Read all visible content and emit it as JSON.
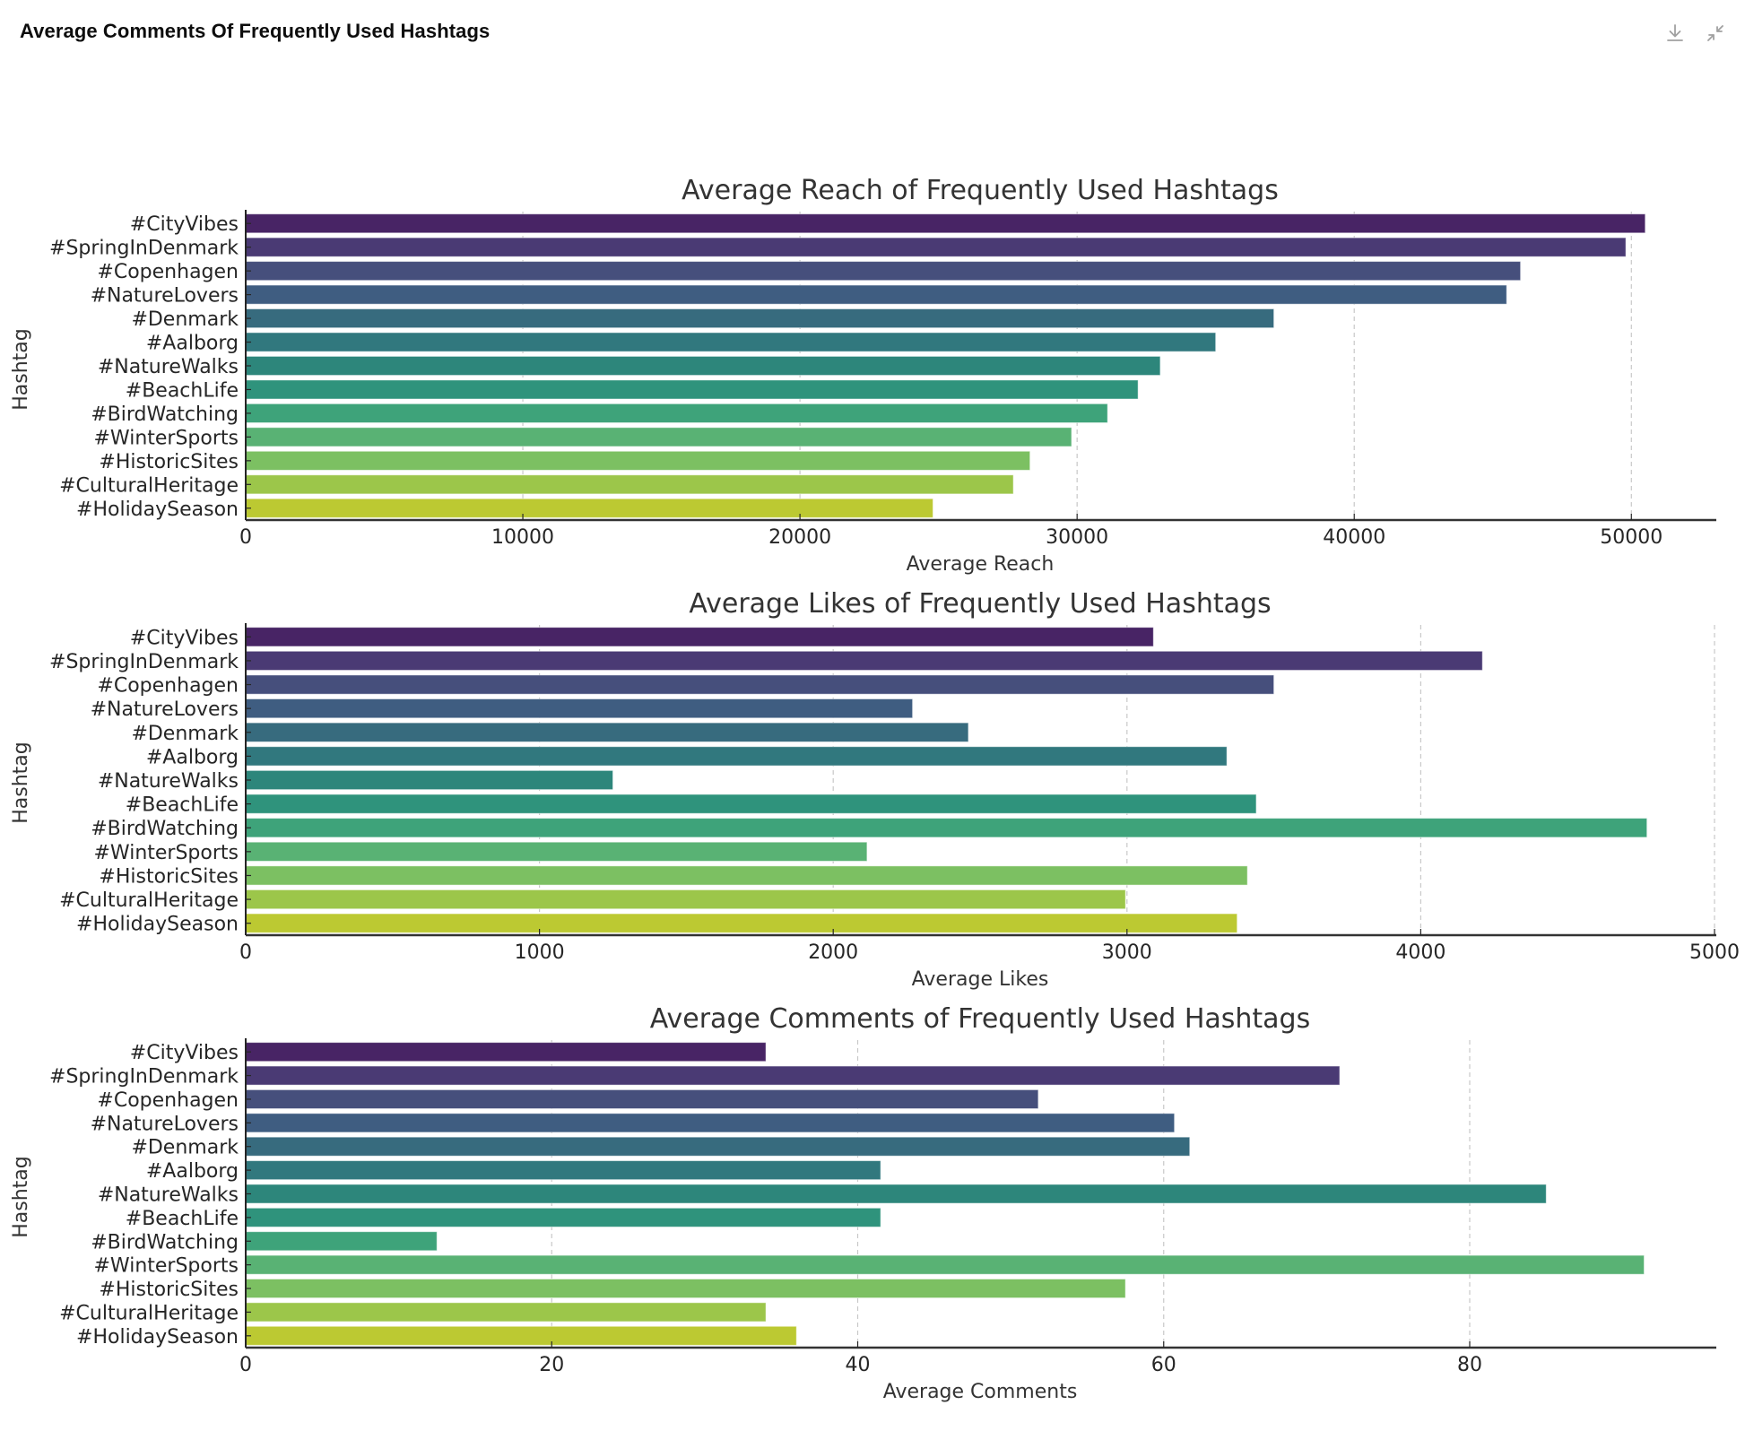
{
  "header": {
    "title": "Average Comments Of Frequently Used Hashtags",
    "download_icon": "download-icon",
    "collapse_icon": "collapse-icon"
  },
  "chart_data": [
    {
      "type": "bar",
      "orientation": "horizontal",
      "title": "Average Reach of Frequently Used Hashtags",
      "xlabel": "Average Reach",
      "ylabel": "Hashtag",
      "xlim": [
        0,
        53000
      ],
      "xticks": [
        0,
        10000,
        20000,
        30000,
        40000,
        50000
      ],
      "xtick_labels": [
        "0",
        "10000",
        "20000",
        "30000",
        "40000",
        "50000"
      ],
      "grid": "x, dashed",
      "categories": [
        "#CityVibes",
        "#SpringInDenmark",
        "#Copenhagen",
        "#NatureLovers",
        "#Denmark",
        "#Aalborg",
        "#NatureWalks",
        "#BeachLife",
        "#BirdWatching",
        "#WinterSports",
        "#HistoricSites",
        "#CulturalHeritage",
        "#HolidaySeason"
      ],
      "values": [
        50500,
        49800,
        46000,
        45500,
        37100,
        35000,
        33000,
        32200,
        31100,
        29800,
        28300,
        27700,
        24800
      ]
    },
    {
      "type": "bar",
      "orientation": "horizontal",
      "title": "Average Likes of Frequently Used Hashtags",
      "xlabel": "Average Likes",
      "ylabel": "Hashtag",
      "xlim": [
        0,
        5000
      ],
      "xticks": [
        0,
        1000,
        2000,
        3000,
        4000,
        5000
      ],
      "xtick_labels": [
        "0",
        "1000",
        "2000",
        "3000",
        "4000",
        "5000"
      ],
      "grid": "x, dashed",
      "categories": [
        "#CityVibes",
        "#SpringInDenmark",
        "#Copenhagen",
        "#NatureLovers",
        "#Denmark",
        "#Aalborg",
        "#NatureWalks",
        "#BeachLife",
        "#BirdWatching",
        "#WinterSports",
        "#HistoricSites",
        "#CulturalHeritage",
        "#HolidaySeason"
      ],
      "values": [
        3090,
        4210,
        3500,
        2270,
        2460,
        3340,
        1250,
        3440,
        4770,
        2115,
        3410,
        2995,
        3375
      ]
    },
    {
      "type": "bar",
      "orientation": "horizontal",
      "title": "Average Comments of Frequently Used Hashtags",
      "xlabel": "Average Comments",
      "ylabel": "Hashtag",
      "xlim": [
        0,
        96
      ],
      "xticks": [
        0,
        20,
        40,
        60,
        80
      ],
      "xtick_labels": [
        "0",
        "20",
        "40",
        "60",
        "80"
      ],
      "grid": "x, dashed",
      "categories": [
        "#CityVibes",
        "#SpringInDenmark",
        "#Copenhagen",
        "#NatureLovers",
        "#Denmark",
        "#Aalborg",
        "#NatureWalks",
        "#BeachLife",
        "#BirdWatching",
        "#WinterSports",
        "#HistoricSites",
        "#CulturalHeritage",
        "#HolidaySeason"
      ],
      "values": [
        34.0,
        71.5,
        51.8,
        60.7,
        61.7,
        41.5,
        85.0,
        41.5,
        12.5,
        91.4,
        57.5,
        34.0,
        36.0
      ]
    }
  ],
  "palette": [
    "#482465",
    "#4a3a74",
    "#464f7c",
    "#3f5d81",
    "#376b7e",
    "#31787e",
    "#2d867b",
    "#2f937c",
    "#3ea37a",
    "#59b274",
    "#7cc062",
    "#9cc64a",
    "#bcc932"
  ]
}
